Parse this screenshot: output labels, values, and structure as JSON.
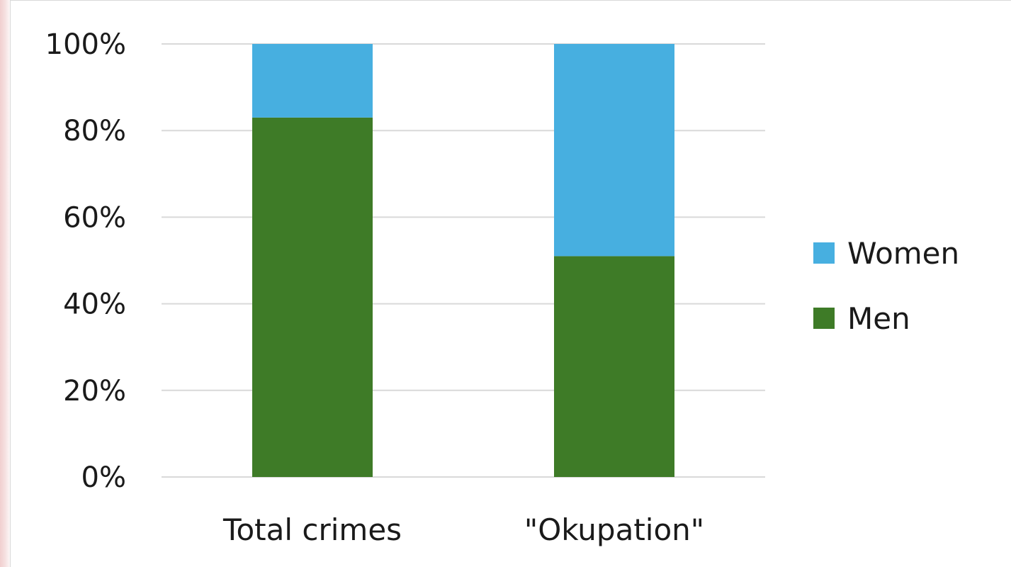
{
  "chart_data": {
    "type": "bar",
    "stacked": true,
    "percent": true,
    "categories": [
      "Total crimes",
      "\"Okupation\""
    ],
    "series": [
      {
        "name": "Men",
        "values": [
          83,
          51
        ],
        "color": "#3e7b27"
      },
      {
        "name": "Women",
        "values": [
          17,
          49
        ],
        "color": "#47afe0"
      }
    ],
    "yticks": [
      "0%",
      "20%",
      "40%",
      "60%",
      "80%",
      "100%"
    ],
    "ylim": [
      0,
      100
    ],
    "grid": true,
    "legend": {
      "position": "right",
      "order": [
        "Women",
        "Men"
      ]
    }
  }
}
